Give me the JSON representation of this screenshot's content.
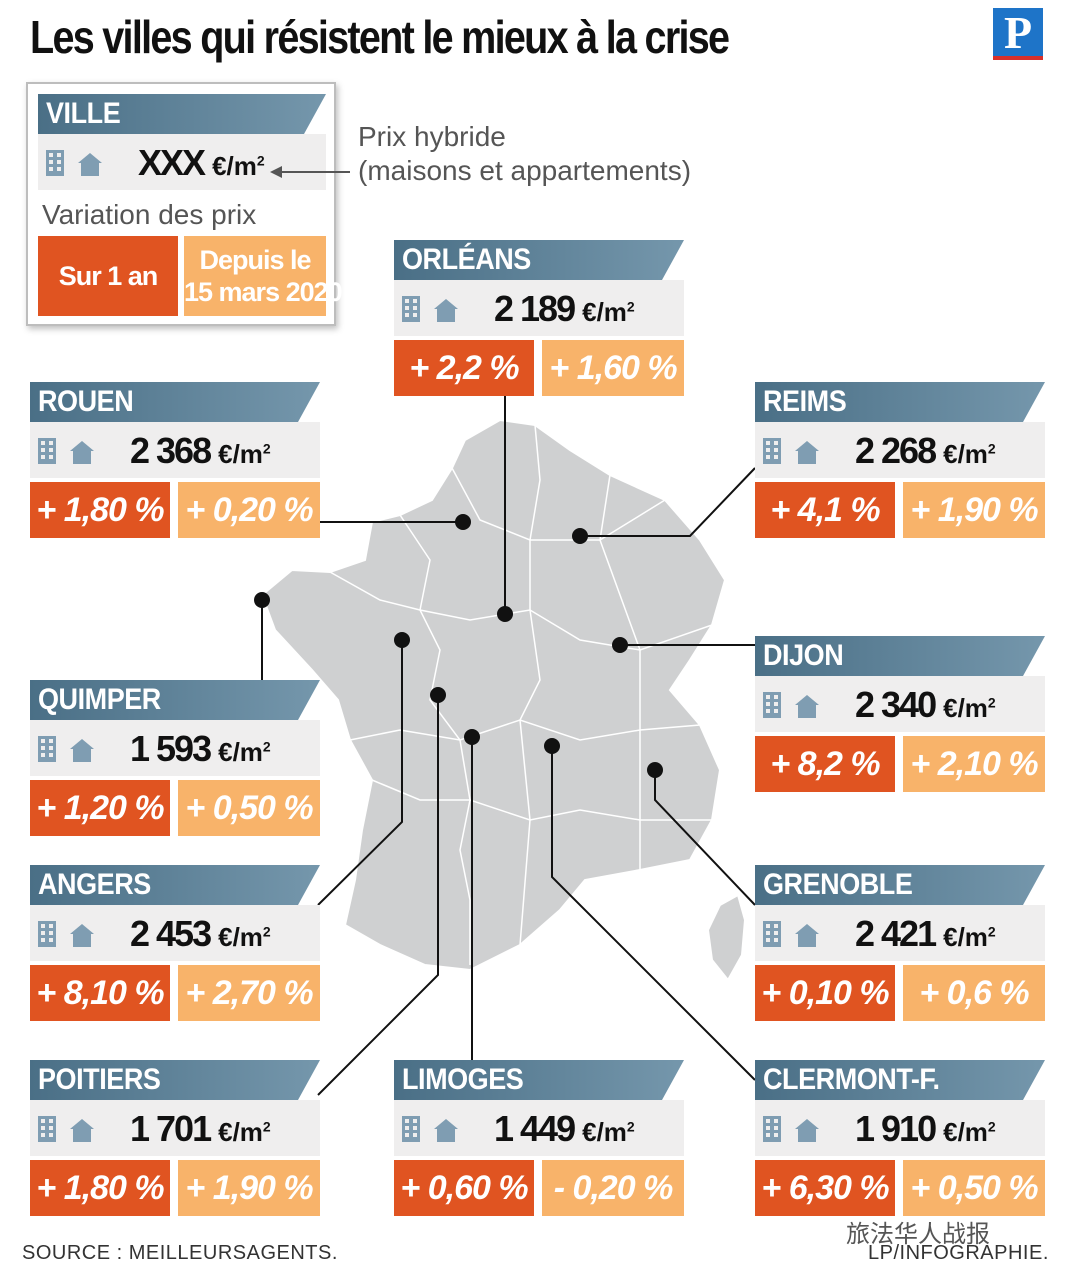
{
  "title": "Les villes qui résistent le mieux à la crise",
  "logo_letter": "P",
  "legend": {
    "city": "VILLE",
    "price": "XXX",
    "unit": "€/m",
    "unit_exp": "2",
    "variation_label": "Variation des prix",
    "year_label": "Sur 1 an",
    "since_label_1": "Depuis le",
    "since_label_2": "15 mars 2020",
    "note_1": "Prix hybride",
    "note_2": "(maisons et appartements)"
  },
  "colors": {
    "banner": "#5b7f96",
    "year_variation": "#e05421",
    "since_variation": "#f8b36a",
    "map_fill": "#cfd0d1",
    "map_border": "#ffffff"
  },
  "icons": [
    "building-icon",
    "house-icon"
  ],
  "source": "SOURCE : MEILLEURSAGENTS.",
  "credit": "LP/INFOGRAPHIE.",
  "watermark": "旅法华人战报",
  "chart_data": {
    "type": "table",
    "title": "Les villes qui résistent le mieux à la crise",
    "columns": [
      "Ville",
      "Prix hybride (€/m²)",
      "Sur 1 an",
      "Depuis le 15 mars 2020"
    ],
    "cities": [
      {
        "name": "ORLÉANS",
        "price": "2 189",
        "year": "+ 2,2 %",
        "since": "+ 1,60 %"
      },
      {
        "name": "ROUEN",
        "price": "2 368",
        "year": "+ 1,80 %",
        "since": "+ 0,20 %"
      },
      {
        "name": "REIMS",
        "price": "2 268",
        "year": "+ 4,1 %",
        "since": "+ 1,90 %"
      },
      {
        "name": "QUIMPER",
        "price": "1 593",
        "year": "+ 1,20 %",
        "since": "+ 0,50 %"
      },
      {
        "name": "DIJON",
        "price": "2 340",
        "year": "+ 8,2 %",
        "since": "+ 2,10 %"
      },
      {
        "name": "ANGERS",
        "price": "2 453",
        "year": "+ 8,10 %",
        "since": "+ 2,70 %"
      },
      {
        "name": "GRENOBLE",
        "price": "2 421",
        "year": "+ 0,10 %",
        "since": "+ 0,6 %"
      },
      {
        "name": "POITIERS",
        "price": "1 701",
        "year": "+ 1,80 %",
        "since": "+ 1,90 %"
      },
      {
        "name": "LIMOGES",
        "price": "1 449",
        "year": "+ 0,60 %",
        "since": "- 0,20 %"
      },
      {
        "name": "CLERMONT-F.",
        "price": "1 910",
        "year": "+ 6,30 %",
        "since": "+ 0,50 %"
      }
    ]
  }
}
